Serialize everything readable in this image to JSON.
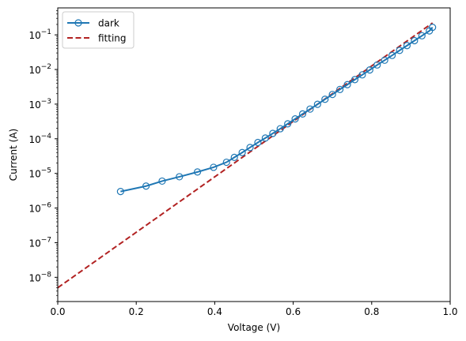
{
  "chart_data": {
    "type": "line",
    "title": "",
    "xlabel": "Voltage (V)",
    "ylabel": "Current (A)",
    "xlim": [
      0.0,
      1.0
    ],
    "ylim": [
      2e-09,
      0.6
    ],
    "yscale": "log",
    "grid": false,
    "legend_position": "top-left",
    "x_ticks": [
      {
        "value": 0.0,
        "label": "0.0"
      },
      {
        "value": 0.2,
        "label": "0.2"
      },
      {
        "value": 0.4,
        "label": "0.4"
      },
      {
        "value": 0.6,
        "label": "0.6"
      },
      {
        "value": 0.8,
        "label": "0.8"
      },
      {
        "value": 1.0,
        "label": "1.0"
      }
    ],
    "y_ticks": [
      {
        "value": 1e-08,
        "base": "10",
        "exp": "−8"
      },
      {
        "value": 1e-07,
        "base": "10",
        "exp": "−7"
      },
      {
        "value": 1e-06,
        "base": "10",
        "exp": "−6"
      },
      {
        "value": 1e-05,
        "base": "10",
        "exp": "−5"
      },
      {
        "value": 0.0001,
        "base": "10",
        "exp": "−4"
      },
      {
        "value": 0.001,
        "base": "10",
        "exp": "−3"
      },
      {
        "value": 0.01,
        "base": "10",
        "exp": "−2"
      },
      {
        "value": 0.1,
        "base": "10",
        "exp": "−1"
      }
    ],
    "series": [
      {
        "name": "dark",
        "color": "#1f77b4",
        "style": "solid-line-hollow-circle",
        "x": [
          0.16,
          0.225,
          0.266,
          0.31,
          0.356,
          0.397,
          0.43,
          0.45,
          0.47,
          0.49,
          0.51,
          0.529,
          0.548,
          0.567,
          0.586,
          0.605,
          0.624,
          0.643,
          0.662,
          0.681,
          0.7,
          0.719,
          0.738,
          0.757,
          0.776,
          0.795,
          0.814,
          0.833,
          0.852,
          0.871,
          0.89,
          0.909,
          0.928,
          0.947,
          0.955
        ],
        "y": [
          3e-06,
          4.3e-06,
          6e-06,
          8e-06,
          1.1e-05,
          1.5e-05,
          2.1e-05,
          2.9e-05,
          4e-05,
          5.6e-05,
          7.8e-05,
          0.000105,
          0.000143,
          0.000195,
          0.00027,
          0.000375,
          0.00052,
          0.00072,
          0.00099,
          0.00138,
          0.0019,
          0.00265,
          0.00365,
          0.0051,
          0.007,
          0.0097,
          0.0135,
          0.0185,
          0.0255,
          0.0355,
          0.049,
          0.068,
          0.094,
          0.13,
          0.165
        ]
      },
      {
        "name": "fitting",
        "color": "#b22222",
        "style": "dashed-line",
        "x": [
          0.0,
          0.955
        ],
        "y": [
          5e-09,
          0.22
        ]
      }
    ]
  }
}
